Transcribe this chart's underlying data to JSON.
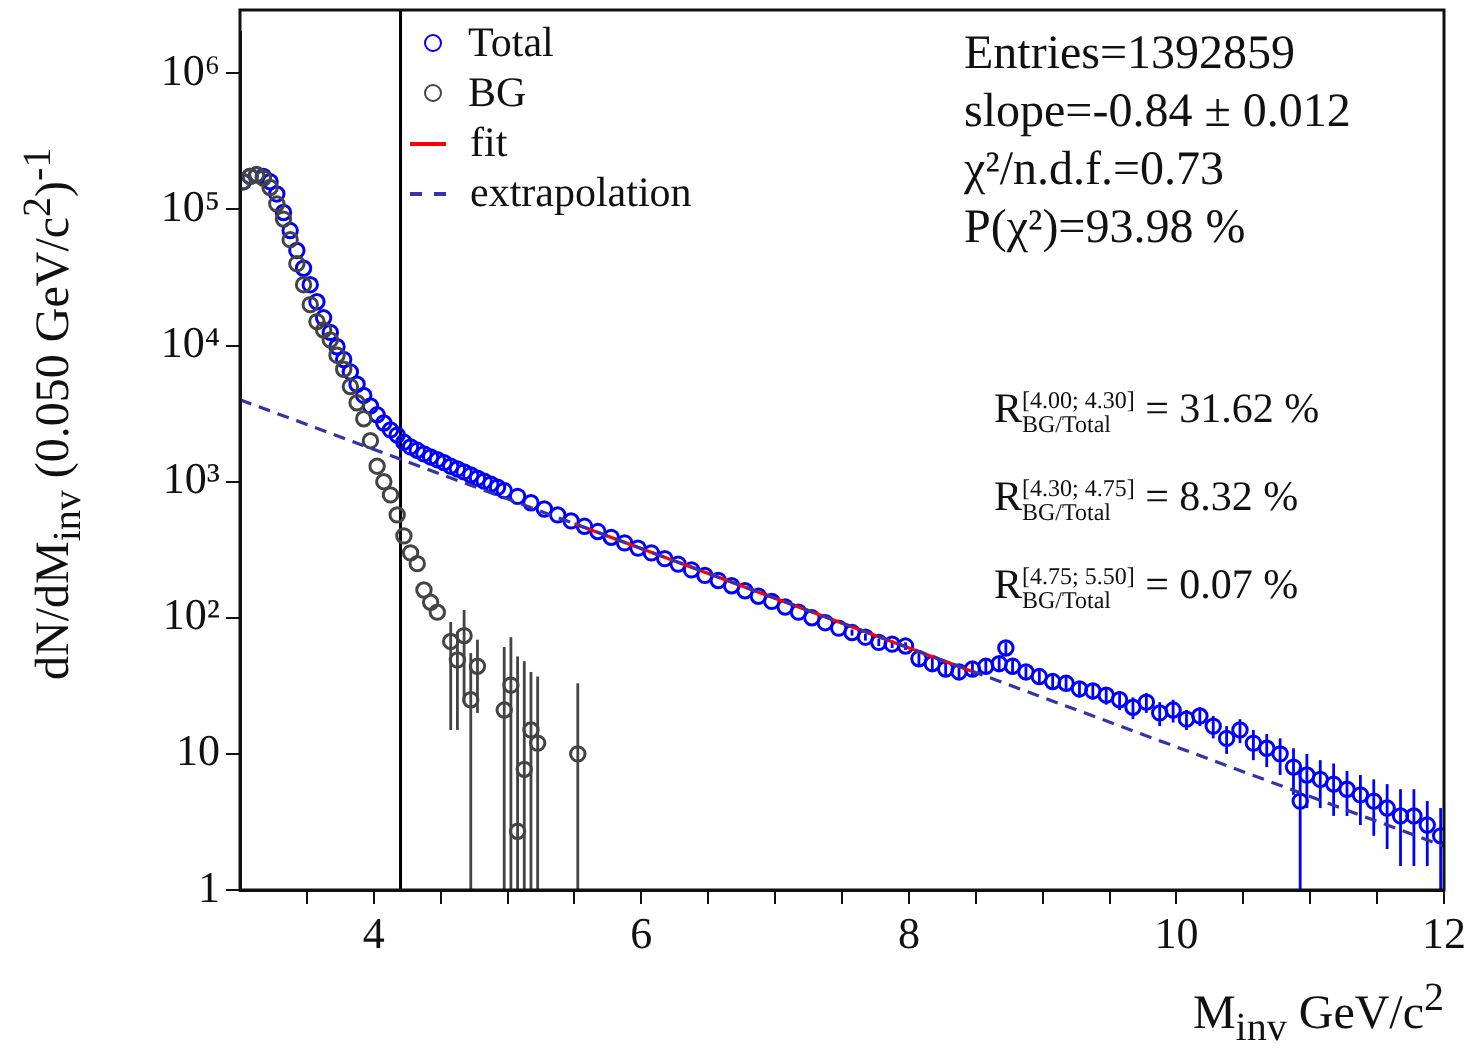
{
  "chart_data": {
    "type": "scatter",
    "xlabel": "M$_{inv}$ GeV/c$^{2}$",
    "ylabel": "dN/dM$_{inv}$ (0.050 GeV/c$^{2}$)$^{-1}$",
    "log": "y",
    "xlim": [
      3,
      12
    ],
    "ylim": [
      1,
      2000000
    ],
    "xticks": [
      {
        "value": 3.5,
        "label": null
      },
      4,
      {
        "value": 4.5,
        "label": null
      },
      {
        "value": 5,
        "label": null
      },
      {
        "value": 5.5,
        "label": null
      },
      6,
      {
        "value": 6.5,
        "label": null
      },
      {
        "value": 7,
        "label": null
      },
      {
        "value": 7.5,
        "label": null
      },
      8,
      {
        "value": 8.5,
        "label": null
      },
      {
        "value": 9,
        "label": null
      },
      {
        "value": 9.5,
        "label": null
      },
      10,
      {
        "value": 10.5,
        "label": null
      },
      {
        "value": 11,
        "label": null
      },
      {
        "value": 11.5,
        "label": null
      },
      12
    ],
    "yticks": [
      1,
      10,
      {
        "value": 100,
        "label": "10²"
      },
      {
        "value": 1000,
        "label": "10³"
      },
      {
        "value": 10000,
        "label": "10⁴"
      },
      {
        "value": 100000,
        "label": "10⁵"
      },
      {
        "value": 1000000,
        "label": "10⁶"
      }
    ],
    "grid": false,
    "legend": "top left",
    "series": [
      {
        "name": "Total",
        "marker": "circle",
        "color": "#0000ff",
        "x": [
          3.025,
          3.075,
          3.125,
          3.175,
          3.225,
          3.275,
          3.325,
          3.375,
          3.425,
          3.475,
          3.525,
          3.575,
          3.625,
          3.675,
          3.725,
          3.775,
          3.825,
          3.875,
          3.925,
          3.975,
          4.025,
          4.075,
          4.125,
          4.175,
          4.225,
          4.275,
          4.325,
          4.375,
          4.425,
          4.475,
          4.525,
          4.575,
          4.625,
          4.675,
          4.725,
          4.775,
          4.825,
          4.875,
          4.925,
          4.975,
          5.075,
          5.175,
          5.275,
          5.375,
          5.475,
          5.575,
          5.675,
          5.775,
          5.875,
          5.975,
          6.075,
          6.175,
          6.275,
          6.375,
          6.475,
          6.575,
          6.675,
          6.775,
          6.875,
          6.975,
          7.075,
          7.175,
          7.275,
          7.375,
          7.475,
          7.575,
          7.675,
          7.775,
          7.875,
          7.975,
          8.075,
          8.175,
          8.275,
          8.375,
          8.475,
          8.575,
          8.675,
          8.725,
          8.775,
          8.875,
          8.975,
          9.075,
          9.175,
          9.275,
          9.375,
          9.475,
          9.575,
          9.675,
          9.775,
          9.875,
          9.975,
          10.075,
          10.175,
          10.275,
          10.375,
          10.475,
          10.575,
          10.675,
          10.775,
          10.875,
          10.925,
          10.975,
          11.075,
          11.175,
          11.275,
          11.375,
          11.475,
          11.575,
          11.675,
          11.775,
          11.875,
          11.975
        ],
        "values": [
          160000,
          175000,
          180000,
          175000,
          160000,
          130000,
          95000,
          70000,
          50000,
          37000,
          28000,
          21000,
          16000,
          12500,
          9800,
          7900,
          6400,
          5200,
          4300,
          3600,
          3100,
          2700,
          2400,
          2200,
          1950,
          1800,
          1700,
          1600,
          1520,
          1450,
          1380,
          1300,
          1240,
          1180,
          1120,
          1060,
          1010,
          960,
          910,
          860,
          780,
          700,
          630,
          570,
          515,
          470,
          430,
          390,
          355,
          325,
          300,
          272,
          248,
          225,
          205,
          188,
          172,
          158,
          144,
          132,
          120,
          110,
          100,
          92,
          84,
          78,
          72,
          66,
          64,
          62,
          50,
          46,
          42,
          40,
          42,
          44,
          46,
          60,
          44,
          40,
          37,
          34,
          33,
          30,
          29,
          27,
          25,
          22,
          24,
          20,
          21,
          18,
          19,
          16,
          13,
          15,
          12,
          11,
          10,
          8,
          4.5,
          7,
          6.5,
          6,
          5.5,
          5,
          4.5,
          4,
          3.5,
          3.5,
          3,
          2.5
        ],
        "errors": [
          null,
          null,
          null,
          null,
          null,
          null,
          null,
          null,
          null,
          null,
          null,
          null,
          null,
          null,
          null,
          null,
          null,
          null,
          null,
          null,
          null,
          null,
          null,
          null,
          null,
          null,
          null,
          null,
          null,
          null,
          null,
          null,
          null,
          null,
          null,
          null,
          null,
          null,
          null,
          null,
          null,
          null,
          null,
          null,
          null,
          null,
          null,
          null,
          null,
          null,
          null,
          null,
          null,
          null,
          null,
          null,
          null,
          null,
          null,
          null,
          null,
          null,
          null,
          null,
          null,
          4,
          4,
          4,
          4,
          4,
          5,
          5,
          5,
          5,
          5,
          5,
          5,
          6,
          5,
          4,
          4,
          4,
          4,
          4,
          4,
          4,
          4,
          4,
          4,
          4,
          4,
          3,
          3,
          3,
          3,
          3,
          3,
          3,
          3,
          3,
          3.5,
          3,
          2.5,
          2.5,
          2,
          2,
          2,
          2,
          2,
          2,
          1.5,
          1.5
        ]
      },
      {
        "name": "BG",
        "marker": "circle",
        "color": "#444444",
        "x": [
          3.025,
          3.075,
          3.125,
          3.175,
          3.225,
          3.275,
          3.325,
          3.375,
          3.425,
          3.475,
          3.525,
          3.575,
          3.625,
          3.675,
          3.725,
          3.775,
          3.825,
          3.875,
          3.925,
          3.975,
          4.025,
          4.075,
          4.125,
          4.175,
          4.225,
          4.275,
          4.325,
          4.375,
          4.425,
          4.475,
          4.575,
          4.625,
          4.675,
          4.725,
          4.775,
          4.975,
          5.025,
          5.075,
          5.125,
          5.175,
          5.225,
          5.525
        ],
        "values": [
          160000,
          175000,
          180000,
          170000,
          145000,
          110000,
          85000,
          60000,
          40000,
          28000,
          20000,
          15000,
          13000,
          11000,
          8500,
          6700,
          5000,
          3800,
          2900,
          2000,
          1300,
          1000,
          800,
          570,
          400,
          300,
          250,
          160,
          130,
          110,
          67,
          49,
          74,
          25,
          44,
          21,
          32,
          2.7,
          7.7,
          15,
          12,
          10
        ],
        "errors": [
          null,
          null,
          null,
          null,
          null,
          null,
          null,
          null,
          null,
          null,
          null,
          null,
          null,
          null,
          null,
          null,
          null,
          null,
          null,
          null,
          null,
          null,
          null,
          null,
          null,
          null,
          null,
          null,
          null,
          null,
          [
            15,
            93
          ],
          [
            15,
            79
          ],
          [
            24,
            114
          ],
          [
            1,
            55
          ],
          [
            20,
            69
          ],
          [
            1,
            61
          ],
          [
            1,
            72
          ],
          [
            1,
            52
          ],
          [
            1,
            48
          ],
          [
            1,
            40
          ],
          [
            1,
            37
          ],
          [
            1,
            33
          ]
        ]
      },
      {
        "name": "fit",
        "type": "line",
        "marker": "none",
        "color": "#ff0000",
        "x": [
          5.5,
          8.5
        ],
        "values": [
          490,
          39.4
        ]
      },
      {
        "name": "extrapolation",
        "type": "line",
        "marker": "none",
        "color": "#3333aa",
        "line_style": "dashed",
        "x": [
          3,
          12
        ],
        "values": [
          4000,
          2.1
        ]
      }
    ],
    "ref_lines": [
      {
        "axis": "x",
        "value": 4.2,
        "color": "#000000"
      }
    ],
    "annotations": [
      "Entries=1392859",
      "slope=-0.84 ± 0.012",
      "χ²/n.d.f.=0.73",
      "P(χ²)=93.98 %",
      "R$_{BG/Total}$$^{[4.00; 4.30]}$ = 31.62 %",
      "R$_{BG/Total}$$^{[4.30; 4.75]}$ = 8.32 %",
      "R$_{BG/Total}$$^{[4.75; 5.50]}$ = 0.07 %"
    ]
  }
}
